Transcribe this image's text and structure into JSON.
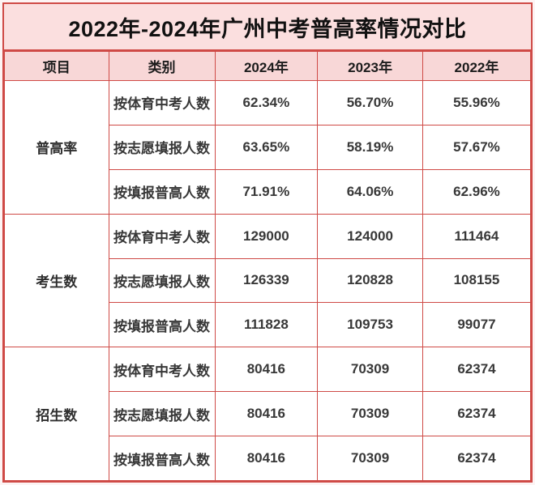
{
  "colors": {
    "border_red": "#cf4a46",
    "title_bg": "#fbdfdf",
    "header_bg": "#f8d7d7",
    "cell_bg": "#ffffff",
    "body_text": "#383838",
    "title_text": "#111111"
  },
  "chart_data": {
    "type": "table",
    "title": "2022年-2024年广州中考普高率情况对比",
    "columns": [
      "项目",
      "类别",
      "2024年",
      "2023年",
      "2022年"
    ],
    "groups": [
      {
        "label": "普高率",
        "rows": [
          {
            "category": "按体育中考人数",
            "values": [
              "62.34%",
              "56.70%",
              "55.96%"
            ]
          },
          {
            "category": "按志愿填报人数",
            "values": [
              "63.65%",
              "58.19%",
              "57.67%"
            ]
          },
          {
            "category": "按填报普高人数",
            "values": [
              "71.91%",
              "64.06%",
              "62.96%"
            ]
          }
        ]
      },
      {
        "label": "考生数",
        "rows": [
          {
            "category": "按体育中考人数",
            "values": [
              "129000",
              "124000",
              "111464"
            ]
          },
          {
            "category": "按志愿填报人数",
            "values": [
              "126339",
              "120828",
              "108155"
            ]
          },
          {
            "category": "按填报普高人数",
            "values": [
              "111828",
              "109753",
              "99077"
            ]
          }
        ]
      },
      {
        "label": "招生数",
        "rows": [
          {
            "category": "按体育中考人数",
            "values": [
              "80416",
              "70309",
              "62374"
            ]
          },
          {
            "category": "按志愿填报人数",
            "values": [
              "80416",
              "70309",
              "62374"
            ]
          },
          {
            "category": "按填报普高人数",
            "values": [
              "80416",
              "70309",
              "62374"
            ]
          }
        ]
      }
    ]
  }
}
